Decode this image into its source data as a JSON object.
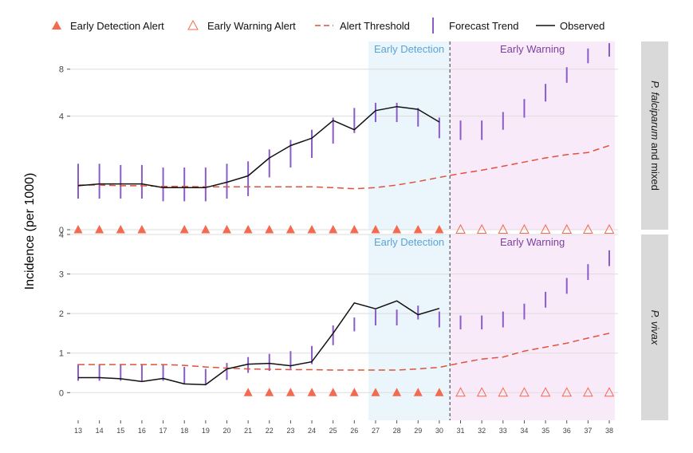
{
  "legend": {
    "early_detection_alert": "Early Detection Alert",
    "early_warning_alert": "Early Warning Alert",
    "alert_threshold": "Alert Threshold",
    "forecast_trend": "Forecast Trend",
    "observed": "Observed"
  },
  "ylabel": "Incidence (per 1000)",
  "colors": {
    "alert": "#f26a4f",
    "threshold": "#e0523a",
    "forecast": "#8b5cc7",
    "observed": "#111111",
    "detection_band": "#eaf5fc",
    "warning_band": "#f9eafa",
    "detection_text": "#5ba4d6",
    "warning_text": "#7b3f9e",
    "strip": "#d9d9d9",
    "grid": "#dddddd"
  },
  "chart_data": [
    {
      "type": "line",
      "panel": "falciparum",
      "strip_label_italic": "P. falciparum",
      "strip_label_rest": " and mixed",
      "band_labels": {
        "detection": "Early Detection",
        "warning": "Early Warning"
      },
      "detection_weeks": [
        27,
        30
      ],
      "warning_weeks": [
        31,
        38
      ],
      "forecast_origin": 30.5,
      "y_axis_type": "sqrt",
      "yticks": [
        0,
        4,
        8
      ],
      "ylim": [
        0,
        11
      ],
      "x": [
        13,
        14,
        15,
        16,
        17,
        18,
        19,
        20,
        21,
        22,
        23,
        24,
        25,
        26,
        27,
        28,
        29,
        30,
        31,
        32,
        33,
        34,
        35,
        36,
        37,
        38
      ],
      "observed": {
        "x": [
          13,
          14,
          15,
          16,
          17,
          18,
          19,
          20,
          21,
          22,
          23,
          24,
          25,
          26,
          27,
          28,
          29,
          30
        ],
        "y": [
          0.6,
          0.65,
          0.65,
          0.65,
          0.55,
          0.55,
          0.55,
          0.7,
          0.9,
          1.6,
          2.2,
          2.6,
          3.7,
          3.1,
          4.4,
          4.7,
          4.5,
          3.6
        ]
      },
      "threshold": {
        "x": [
          13,
          14,
          15,
          16,
          17,
          18,
          19,
          20,
          21,
          22,
          23,
          24,
          25,
          26,
          27,
          28,
          29,
          30,
          31,
          32,
          33,
          34,
          35,
          36,
          37,
          38
        ],
        "y": [
          0.62,
          0.62,
          0.6,
          0.6,
          0.58,
          0.58,
          0.57,
          0.57,
          0.57,
          0.57,
          0.57,
          0.57,
          0.55,
          0.52,
          0.55,
          0.62,
          0.72,
          0.85,
          0.98,
          1.1,
          1.25,
          1.42,
          1.6,
          1.75,
          1.85,
          2.2
        ]
      },
      "forecast": [
        {
          "x": 13,
          "lo": 0.3,
          "hi": 1.35
        },
        {
          "x": 14,
          "lo": 0.3,
          "hi": 1.35
        },
        {
          "x": 15,
          "lo": 0.3,
          "hi": 1.3
        },
        {
          "x": 16,
          "lo": 0.3,
          "hi": 1.3
        },
        {
          "x": 17,
          "lo": 0.25,
          "hi": 1.2
        },
        {
          "x": 18,
          "lo": 0.25,
          "hi": 1.2
        },
        {
          "x": 19,
          "lo": 0.25,
          "hi": 1.2
        },
        {
          "x": 20,
          "lo": 0.3,
          "hi": 1.35
        },
        {
          "x": 21,
          "lo": 0.35,
          "hi": 1.45
        },
        {
          "x": 22,
          "lo": 0.85,
          "hi": 2.0
        },
        {
          "x": 23,
          "lo": 1.2,
          "hi": 2.5
        },
        {
          "x": 24,
          "lo": 1.6,
          "hi": 3.1
        },
        {
          "x": 25,
          "lo": 2.3,
          "hi": 3.9
        },
        {
          "x": 26,
          "lo": 2.9,
          "hi": 4.6
        },
        {
          "x": 27,
          "lo": 3.6,
          "hi": 5.0
        },
        {
          "x": 28,
          "lo": 3.6,
          "hi": 5.0
        },
        {
          "x": 29,
          "lo": 3.3,
          "hi": 4.6
        },
        {
          "x": 30,
          "lo": 2.6,
          "hi": 3.9
        },
        {
          "x": 31,
          "lo": 2.5,
          "hi": 3.7
        },
        {
          "x": 32,
          "lo": 2.5,
          "hi": 3.7
        },
        {
          "x": 33,
          "lo": 3.1,
          "hi": 4.3
        },
        {
          "x": 34,
          "lo": 3.9,
          "hi": 5.3
        },
        {
          "x": 35,
          "lo": 5.1,
          "hi": 6.6
        },
        {
          "x": 36,
          "lo": 6.7,
          "hi": 8.2
        },
        {
          "x": 37,
          "lo": 8.6,
          "hi": 10.2
        },
        {
          "x": 38,
          "lo": 9.3,
          "hi": 10.8
        }
      ],
      "detection_alert_weeks": [
        13,
        14,
        15,
        16,
        18,
        19,
        20,
        21,
        22,
        23,
        24,
        25,
        26,
        27,
        28,
        29,
        30
      ],
      "warning_alert_weeks": [
        31,
        32,
        33,
        34,
        35,
        36,
        37,
        38
      ]
    },
    {
      "type": "line",
      "panel": "vivax",
      "strip_label_italic": "P. vivax",
      "strip_label_rest": "",
      "band_labels": {
        "detection": "Early Detection",
        "warning": "Early Warning"
      },
      "detection_weeks": [
        27,
        30
      ],
      "warning_weeks": [
        31,
        38
      ],
      "forecast_origin": 30.5,
      "y_axis_type": "linear",
      "yticks": [
        0,
        1,
        2,
        3,
        4
      ],
      "ylim": [
        -0.7,
        4.0
      ],
      "x": [
        13,
        14,
        15,
        16,
        17,
        18,
        19,
        20,
        21,
        22,
        23,
        24,
        25,
        26,
        27,
        28,
        29,
        30,
        31,
        32,
        33,
        34,
        35,
        36,
        37,
        38
      ],
      "observed": {
        "x": [
          13,
          14,
          15,
          16,
          17,
          18,
          19,
          20,
          21,
          22,
          23,
          24,
          25,
          26,
          27,
          28,
          29,
          30
        ],
        "y": [
          0.38,
          0.38,
          0.35,
          0.28,
          0.36,
          0.22,
          0.2,
          0.6,
          0.72,
          0.74,
          0.68,
          0.78,
          1.5,
          2.27,
          2.12,
          2.32,
          1.97,
          2.13
        ]
      },
      "threshold": {
        "x": [
          13,
          14,
          15,
          16,
          17,
          18,
          19,
          20,
          21,
          22,
          23,
          24,
          25,
          26,
          27,
          28,
          29,
          30,
          31,
          32,
          33,
          34,
          35,
          36,
          37,
          38
        ],
        "y": [
          0.71,
          0.71,
          0.71,
          0.71,
          0.71,
          0.69,
          0.65,
          0.62,
          0.6,
          0.59,
          0.58,
          0.58,
          0.57,
          0.57,
          0.57,
          0.57,
          0.6,
          0.64,
          0.75,
          0.85,
          0.9,
          1.05,
          1.15,
          1.25,
          1.38,
          1.5
        ]
      },
      "forecast": [
        {
          "x": 13,
          "lo": 0.3,
          "hi": 0.72
        },
        {
          "x": 14,
          "lo": 0.3,
          "hi": 0.72
        },
        {
          "x": 15,
          "lo": 0.3,
          "hi": 0.72
        },
        {
          "x": 16,
          "lo": 0.3,
          "hi": 0.72
        },
        {
          "x": 17,
          "lo": 0.3,
          "hi": 0.72
        },
        {
          "x": 18,
          "lo": 0.22,
          "hi": 0.65
        },
        {
          "x": 19,
          "lo": 0.2,
          "hi": 0.6
        },
        {
          "x": 20,
          "lo": 0.32,
          "hi": 0.75
        },
        {
          "x": 21,
          "lo": 0.5,
          "hi": 0.9
        },
        {
          "x": 22,
          "lo": 0.55,
          "hi": 0.98
        },
        {
          "x": 23,
          "lo": 0.6,
          "hi": 1.05
        },
        {
          "x": 24,
          "lo": 0.72,
          "hi": 1.18
        },
        {
          "x": 25,
          "lo": 1.2,
          "hi": 1.7
        },
        {
          "x": 26,
          "lo": 1.55,
          "hi": 1.9
        },
        {
          "x": 27,
          "lo": 1.7,
          "hi": 2.1
        },
        {
          "x": 28,
          "lo": 1.7,
          "hi": 2.1
        },
        {
          "x": 29,
          "lo": 1.85,
          "hi": 2.2
        },
        {
          "x": 30,
          "lo": 1.65,
          "hi": 2.05
        },
        {
          "x": 31,
          "lo": 1.6,
          "hi": 1.95
        },
        {
          "x": 32,
          "lo": 1.6,
          "hi": 1.95
        },
        {
          "x": 33,
          "lo": 1.65,
          "hi": 2.05
        },
        {
          "x": 34,
          "lo": 1.85,
          "hi": 2.25
        },
        {
          "x": 35,
          "lo": 2.15,
          "hi": 2.55
        },
        {
          "x": 36,
          "lo": 2.5,
          "hi": 2.9
        },
        {
          "x": 37,
          "lo": 2.85,
          "hi": 3.25
        },
        {
          "x": 38,
          "lo": 3.2,
          "hi": 3.6
        }
      ],
      "detection_alert_weeks": [
        21,
        22,
        23,
        24,
        25,
        26,
        27,
        28,
        29,
        30
      ],
      "warning_alert_weeks": [
        31,
        32,
        33,
        34,
        35,
        36,
        37,
        38
      ]
    }
  ]
}
